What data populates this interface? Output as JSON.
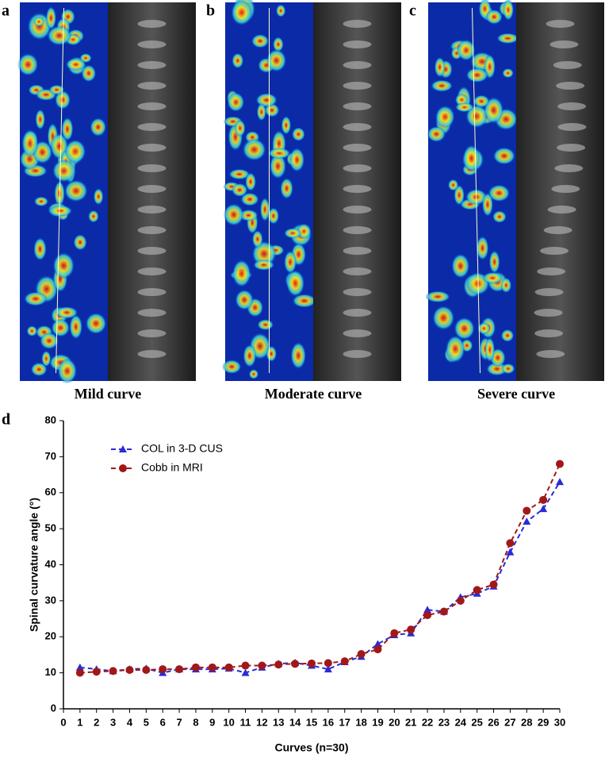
{
  "panels": [
    {
      "label": "a",
      "caption": "Mild curve"
    },
    {
      "label": "b",
      "caption": "Moderate curve"
    },
    {
      "label": "c",
      "caption": "Severe curve"
    }
  ],
  "chart_data": {
    "label": "d",
    "type": "line",
    "xlabel": "Curves (n=30)",
    "ylabel": "Spinal curvature angle (°)",
    "x": [
      1,
      2,
      3,
      4,
      5,
      6,
      7,
      8,
      9,
      10,
      11,
      12,
      13,
      14,
      15,
      16,
      17,
      18,
      19,
      20,
      21,
      22,
      23,
      24,
      25,
      26,
      27,
      28,
      29,
      30
    ],
    "series": [
      {
        "name": "COL in 3-D CUS",
        "color": "#2b2bd6",
        "marker": "triangle",
        "values": [
          11.5,
          11,
          10.5,
          11,
          11.2,
          10,
          11,
          11,
          11,
          11.2,
          10,
          11.5,
          12.5,
          12.8,
          12,
          11,
          13,
          14.5,
          18,
          20.5,
          21,
          27.5,
          27,
          31,
          32,
          34,
          43.5,
          52,
          55.5,
          63
        ]
      },
      {
        "name": "Cobb in MRI",
        "color": "#a01818",
        "marker": "circle",
        "values": [
          10,
          10.3,
          10.5,
          10.8,
          10.8,
          11,
          11,
          11.5,
          11.5,
          11.5,
          12,
          12,
          12.3,
          12.5,
          12.6,
          12.7,
          13.2,
          15.2,
          16.5,
          21,
          22,
          26,
          27,
          30,
          33,
          34.5,
          46,
          55,
          58,
          68
        ]
      }
    ],
    "xlim": [
      0,
      30
    ],
    "xticks": [
      0,
      1,
      2,
      3,
      4,
      5,
      6,
      7,
      8,
      9,
      10,
      11,
      12,
      13,
      14,
      15,
      16,
      17,
      18,
      19,
      20,
      21,
      22,
      23,
      24,
      25,
      26,
      27,
      28,
      29,
      30
    ],
    "ylim": [
      0,
      80
    ],
    "yticks": [
      0,
      10,
      20,
      30,
      40,
      50,
      60,
      70,
      80
    ],
    "legend": "upper left",
    "grid": false
  }
}
